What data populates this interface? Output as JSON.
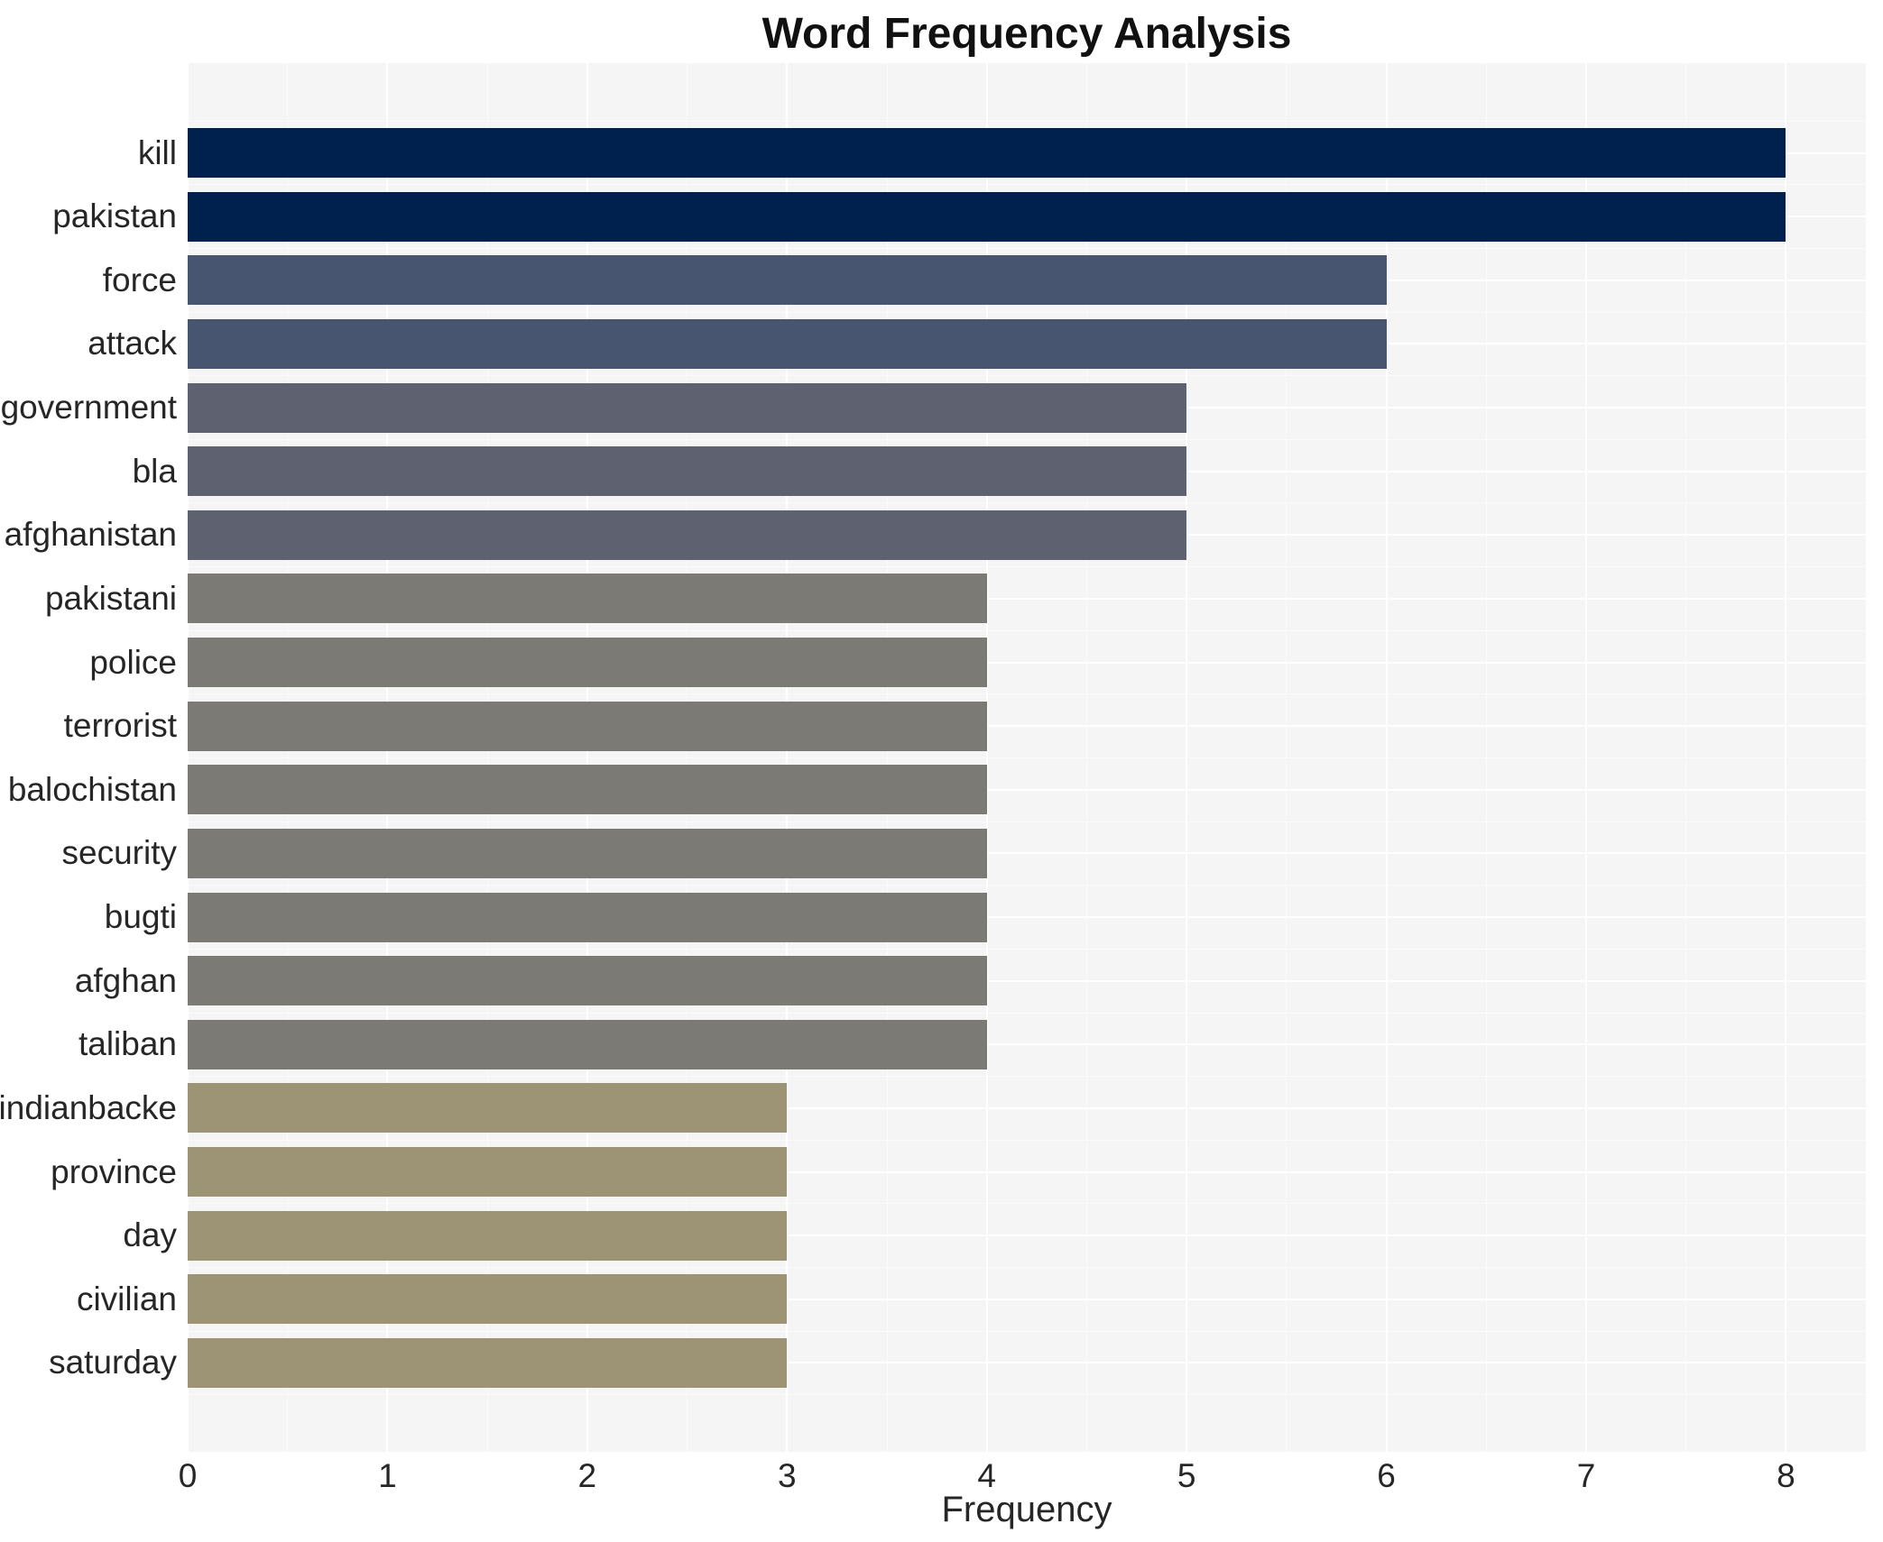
{
  "title": "Word Frequency Analysis",
  "chart_data": {
    "type": "bar",
    "orientation": "horizontal",
    "title": "Word Frequency Analysis",
    "xlabel": "Frequency",
    "ylabel": "",
    "categories": [
      "kill",
      "pakistan",
      "force",
      "attack",
      "government",
      "bla",
      "afghanistan",
      "pakistani",
      "police",
      "terrorist",
      "balochistan",
      "security",
      "bugti",
      "afghan",
      "taliban",
      "indianbacke",
      "province",
      "day",
      "civilian",
      "saturday"
    ],
    "values": [
      8,
      8,
      6,
      6,
      5,
      5,
      5,
      4,
      4,
      4,
      4,
      4,
      4,
      4,
      4,
      3,
      3,
      3,
      3,
      3
    ],
    "x_ticks": [
      "0",
      "1",
      "2",
      "3",
      "4",
      "5",
      "6",
      "7",
      "8"
    ],
    "xlim": [
      0,
      8.4
    ],
    "grid": true,
    "legend": false,
    "color_by_value": {
      "8": "#00214d",
      "6": "#485571",
      "5": "#5e6270",
      "4": "#7b7a74",
      "3": "#9c9474"
    },
    "panel_bg": "#f5f5f6",
    "grid_color_major": "#ffffff",
    "grid_color_minor": "rgba(255,255,255,0.6)",
    "text_color": "#262626",
    "title_color": "#111111"
  }
}
